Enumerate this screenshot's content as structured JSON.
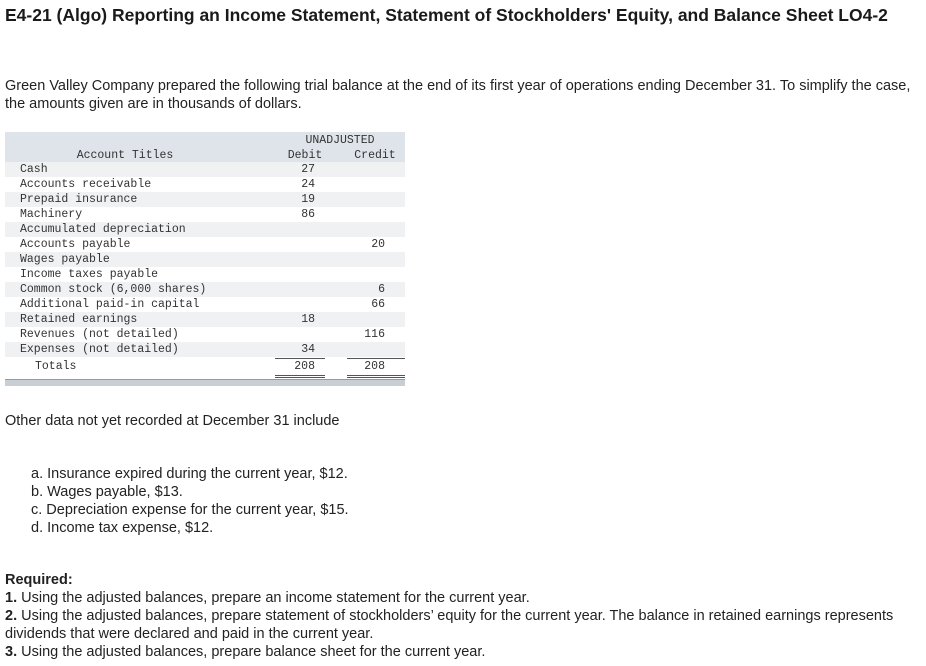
{
  "header": {
    "title": "E4-21 (Algo) Reporting an Income Statement, Statement of Stockholders' Equity, and Balance Sheet LO4-2"
  },
  "intro": "Green Valley Company prepared the following trial balance at the end of its first year of operations ending December 31. To simplify the case, the amounts given are in thousands of dollars.",
  "table": {
    "group_header": "UNADJUSTED",
    "columns": [
      "Account Titles",
      "Debit",
      "Credit"
    ],
    "rows": [
      [
        "Cash",
        27,
        null
      ],
      [
        "Accounts receivable",
        24,
        null
      ],
      [
        "Prepaid insurance",
        19,
        null
      ],
      [
        "Machinery",
        86,
        null
      ],
      [
        "Accumulated depreciation",
        null,
        null
      ],
      [
        "Accounts payable",
        null,
        20
      ],
      [
        "Wages payable",
        null,
        null
      ],
      [
        "Income taxes payable",
        null,
        null
      ],
      [
        "Common stock (6,000 shares)",
        null,
        6
      ],
      [
        "Additional paid-in capital",
        null,
        66
      ],
      [
        "Retained earnings",
        18,
        null
      ],
      [
        "Revenues (not detailed)",
        null,
        116
      ],
      [
        "Expenses (not detailed)",
        34,
        null
      ]
    ],
    "totals": [
      "Totals",
      208,
      208
    ]
  },
  "other_data": {
    "heading": "Other data not yet recorded at December 31 include",
    "items": [
      "a. Insurance expired during the current year, $12.",
      "b. Wages payable, $13.",
      "c. Depreciation expense for the current year, $15.",
      "d. Income tax expense, $12."
    ]
  },
  "required": {
    "label": "Required:",
    "items": [
      {
        "number": "1.",
        "text": "Using the adjusted balances, prepare an income statement for the current year."
      },
      {
        "number": "2.",
        "text": "Using the adjusted balances, prepare statement of stockholders’ equity for the current year. The balance in retained earnings represents dividends that were declared and paid in the current year."
      },
      {
        "number": "3.",
        "text": "Using the adjusted balances, prepare balance sheet for the current year."
      }
    ]
  }
}
